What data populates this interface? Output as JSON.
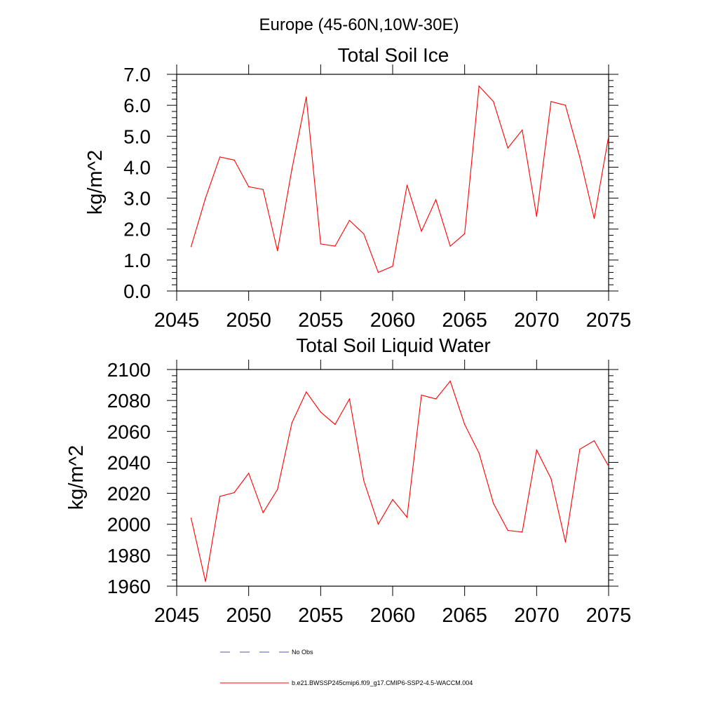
{
  "figure": {
    "title": "Europe (45-60N,10W-30E)"
  },
  "colors": {
    "model_line": "#ff0000",
    "obs_line": "#5a5aa0",
    "axes": "#000000"
  },
  "chart_data": [
    {
      "type": "line",
      "title": "Total Soil Ice",
      "ylabel": "kg/m^2",
      "xlabel": "",
      "xlim": [
        2045,
        2075
      ],
      "ylim": [
        0,
        7
      ],
      "xticks": [
        2045,
        2050,
        2055,
        2060,
        2065,
        2070,
        2075
      ],
      "yticks": [
        0,
        1,
        2,
        3,
        4,
        5,
        6,
        7
      ],
      "ytick_labels": [
        "0.0",
        "1.0",
        "2.0",
        "3.0",
        "4.0",
        "5.0",
        "6.0",
        "7.0"
      ],
      "x": [
        2046,
        2047,
        2048,
        2049,
        2050,
        2051,
        2052,
        2053,
        2054,
        2055,
        2056,
        2057,
        2058,
        2059,
        2060,
        2061,
        2062,
        2063,
        2064,
        2065,
        2066,
        2067,
        2068,
        2069,
        2070,
        2071,
        2072,
        2073,
        2074,
        2075
      ],
      "series": [
        {
          "name": "b.e21.BWSSP245cmip6.f09_g17.CMIP6-SSP2-4.5-WACCM.004",
          "values": [
            1.43,
            3.0,
            4.33,
            4.23,
            3.37,
            3.28,
            1.3,
            3.93,
            6.27,
            1.52,
            1.45,
            2.28,
            1.84,
            0.6,
            0.8,
            3.42,
            1.93,
            2.95,
            1.45,
            1.85,
            6.62,
            6.12,
            4.62,
            5.2,
            2.41,
            6.12,
            6.0,
            4.32,
            2.34,
            5.0
          ]
        }
      ]
    },
    {
      "type": "line",
      "title": "Total Soil Liquid Water",
      "ylabel": "kg/m^2",
      "xlabel": "",
      "xlim": [
        2045,
        2075
      ],
      "ylim": [
        1960,
        2100
      ],
      "xticks": [
        2045,
        2050,
        2055,
        2060,
        2065,
        2070,
        2075
      ],
      "yticks": [
        1960,
        1980,
        2000,
        2020,
        2040,
        2060,
        2080,
        2100
      ],
      "ytick_labels": [
        "1960",
        "1980",
        "2000",
        "2020",
        "2040",
        "2060",
        "2080",
        "2100"
      ],
      "x": [
        2046,
        2047,
        2048,
        2049,
        2050,
        2051,
        2052,
        2053,
        2054,
        2055,
        2056,
        2057,
        2058,
        2059,
        2060,
        2061,
        2062,
        2063,
        2064,
        2065,
        2066,
        2067,
        2068,
        2069,
        2070,
        2071,
        2072,
        2073,
        2074,
        2075
      ],
      "series": [
        {
          "name": "b.e21.BWSSP245cmip6.f09_g17.CMIP6-SSP2-4.5-WACCM.004",
          "values": [
            2004,
            1963,
            2018,
            2020.5,
            2033,
            2007.5,
            2022.5,
            2065.5,
            2085.5,
            2072.5,
            2064.5,
            2081,
            2028,
            2000,
            2016,
            2004.5,
            2083.5,
            2081,
            2092.5,
            2064.5,
            2046,
            2013.5,
            1996,
            1995,
            2048,
            2029.5,
            1988.5,
            2048.5,
            2054,
            2037.5
          ]
        }
      ]
    }
  ],
  "legend": {
    "placement": "bottom",
    "items": [
      {
        "label": "No Obs",
        "style": "dashed"
      },
      {
        "label": "b.e21.BWSSP245cmip6.f09_g17.CMIP6-SSP2-4.5-WACCM.004",
        "style": "solid"
      }
    ]
  }
}
